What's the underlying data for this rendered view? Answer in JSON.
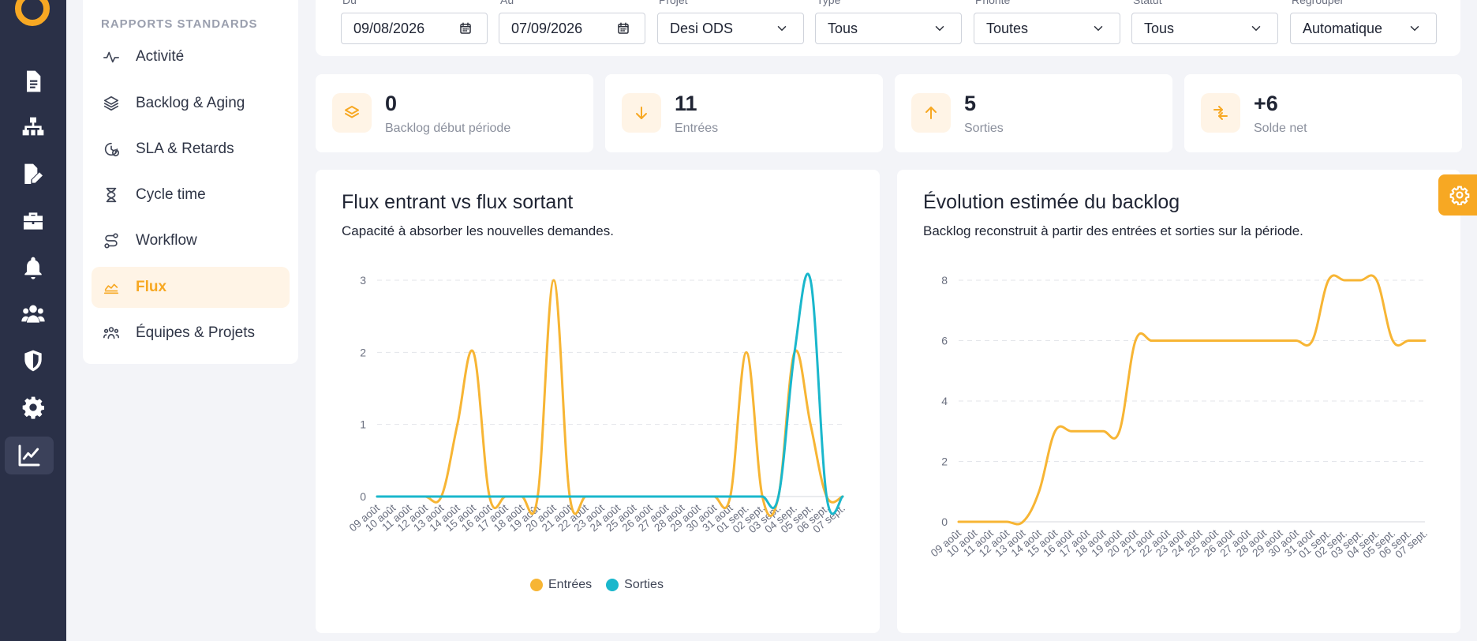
{
  "sidebar_rail": {
    "items": [
      {
        "name": "document-icon",
        "active": false
      },
      {
        "name": "org-chart-icon",
        "active": false
      },
      {
        "name": "file-edit-icon",
        "active": false
      },
      {
        "name": "briefcase-icon",
        "active": false
      },
      {
        "name": "bell-icon",
        "active": false
      },
      {
        "name": "users-icon",
        "active": false
      },
      {
        "name": "shield-icon",
        "active": false
      },
      {
        "name": "gear-icon",
        "active": false
      },
      {
        "name": "chart-line-icon",
        "active": true
      }
    ]
  },
  "reports_menu": {
    "heading": "RAPPORTS STANDARDS",
    "items": [
      {
        "label": "Activité",
        "icon": "activity-icon",
        "active": false
      },
      {
        "label": "Backlog & Aging",
        "icon": "layers-icon",
        "active": false
      },
      {
        "label": "SLA & Retards",
        "icon": "clock-alert-icon",
        "active": false
      },
      {
        "label": "Cycle time",
        "icon": "hourglass-icon",
        "active": false
      },
      {
        "label": "Workflow",
        "icon": "route-icon",
        "active": false
      },
      {
        "label": "Flux",
        "icon": "area-chart-icon",
        "active": true
      },
      {
        "label": "Équipes & Projets",
        "icon": "team-icon",
        "active": false
      }
    ]
  },
  "filters": {
    "from": {
      "label": "Du",
      "value": "09/08/2026"
    },
    "to": {
      "label": "Au",
      "value": "07/09/2026"
    },
    "project": {
      "label": "Projet",
      "value": "Desi ODS"
    },
    "type": {
      "label": "Type",
      "value": "Tous"
    },
    "priority": {
      "label": "Priorité",
      "value": "Toutes"
    },
    "status": {
      "label": "Statut",
      "value": "Tous"
    },
    "group_by": {
      "label": "Regrouper",
      "value": "Automatique"
    }
  },
  "kpis": [
    {
      "value": "0",
      "label": "Backlog début période",
      "icon": "layers-icon"
    },
    {
      "value": "11",
      "label": "Entrées",
      "icon": "arrow-down-icon"
    },
    {
      "value": "5",
      "label": "Sorties",
      "icon": "arrow-up-icon"
    },
    {
      "value": "+6",
      "label": "Solde net",
      "icon": "swap-icon"
    }
  ],
  "colors": {
    "accent": "#f7a823",
    "entrees": "#f7b534",
    "sorties": "#1ab7cc",
    "sorties_overlap": "#26a69a"
  },
  "charts": {
    "flux": {
      "title": "Flux entrant vs flux sortant",
      "subtitle": "Capacité à absorber les nouvelles demandes."
    },
    "backlog": {
      "title": "Évolution estimée du backlog",
      "subtitle": "Backlog reconstruit à partir des entrées et sorties sur la période."
    }
  },
  "chart_data": [
    {
      "type": "line",
      "title": "Flux entrant vs flux sortant",
      "x": [
        "09 août",
        "10 août",
        "11 août",
        "12 août",
        "13 août",
        "14 août",
        "15 août",
        "16 août",
        "17 août",
        "18 août",
        "19 août",
        "20 août",
        "21 août",
        "22 août",
        "23 août",
        "24 août",
        "25 août",
        "26 août",
        "27 août",
        "28 août",
        "29 août",
        "30 août",
        "31 août",
        "01 sept.",
        "02 sept.",
        "03 sept.",
        "04 sept.",
        "05 sept.",
        "06 sept.",
        "07 sept."
      ],
      "series": [
        {
          "name": "Entrées",
          "values": [
            0,
            0,
            0,
            0,
            0,
            1,
            2,
            0,
            0,
            0,
            0,
            3,
            0,
            0,
            0,
            0,
            0,
            0,
            0,
            0,
            0,
            0,
            0,
            2,
            0,
            0,
            2,
            1,
            0,
            0
          ]
        },
        {
          "name": "Sorties",
          "values": [
            0,
            0,
            0,
            0,
            0,
            0,
            0,
            0,
            0,
            0,
            0,
            0,
            0,
            0,
            0,
            0,
            0,
            0,
            0,
            0,
            0,
            0,
            0,
            0,
            0,
            0,
            2,
            3,
            0,
            0
          ]
        }
      ],
      "ylim": [
        0,
        3
      ],
      "yticks": [
        0,
        1,
        2,
        3
      ],
      "grid": true,
      "legend": "bottom"
    },
    {
      "type": "line",
      "title": "Évolution estimée du backlog",
      "x": [
        "09 août",
        "10 août",
        "11 août",
        "12 août",
        "13 août",
        "14 août",
        "15 août",
        "16 août",
        "17 août",
        "18 août",
        "19 août",
        "20 août",
        "21 août",
        "22 août",
        "23 août",
        "24 août",
        "25 août",
        "26 août",
        "27 août",
        "28 août",
        "29 août",
        "30 août",
        "31 août",
        "01 sept.",
        "02 sept.",
        "03 sept.",
        "04 sept.",
        "05 sept.",
        "06 sept.",
        "07 sept."
      ],
      "series": [
        {
          "name": "Backlog",
          "values": [
            0,
            0,
            0,
            0,
            0,
            1,
            3,
            3,
            3,
            3,
            3,
            6,
            6,
            6,
            6,
            6,
            6,
            6,
            6,
            6,
            6,
            6,
            6,
            8,
            8,
            8,
            8,
            6,
            6,
            6
          ]
        }
      ],
      "ylim": [
        0,
        8
      ],
      "yticks": [
        0,
        2,
        4,
        6,
        8
      ],
      "grid": true
    }
  ]
}
